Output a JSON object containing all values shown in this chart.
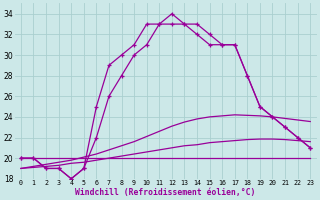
{
  "xlabel": "Windchill (Refroidissement éolien,°C)",
  "hours": [
    0,
    1,
    2,
    3,
    4,
    5,
    6,
    7,
    8,
    9,
    10,
    11,
    12,
    13,
    14,
    15,
    16,
    17,
    18,
    19,
    20,
    21,
    22,
    23
  ],
  "windchill": [
    20,
    20,
    19,
    19,
    18,
    19,
    25,
    29,
    30,
    31,
    33,
    33,
    34,
    33,
    32,
    31,
    31,
    31,
    28,
    25,
    24,
    23,
    22,
    21
  ],
  "temp": [
    20,
    20,
    19,
    19,
    18,
    19,
    22,
    26,
    28,
    30,
    31,
    33,
    33,
    33,
    33,
    32,
    31,
    31,
    28,
    25,
    24,
    23,
    22,
    21
  ],
  "flat_line": [
    20,
    20,
    20,
    20,
    20,
    20,
    20,
    20,
    20,
    20,
    20,
    20,
    20,
    20,
    20,
    20,
    20,
    20,
    20,
    20,
    20,
    20,
    20,
    20
  ],
  "diag1": [
    19,
    19.1,
    19.2,
    19.3,
    19.5,
    19.6,
    19.8,
    20.0,
    20.2,
    20.4,
    20.6,
    20.8,
    21.0,
    21.2,
    21.3,
    21.5,
    21.6,
    21.7,
    21.8,
    21.85,
    21.85,
    21.8,
    21.7,
    21.6
  ],
  "diag2": [
    19,
    19.2,
    19.4,
    19.6,
    19.8,
    20.1,
    20.4,
    20.8,
    21.2,
    21.6,
    22.1,
    22.6,
    23.1,
    23.5,
    23.8,
    24.0,
    24.1,
    24.2,
    24.15,
    24.1,
    24.0,
    23.85,
    23.7,
    23.55
  ],
  "line_color": "#990099",
  "bg_color": "#cce8e8",
  "grid_color": "#aacfcf",
  "ylim": [
    18,
    35
  ],
  "yticks": [
    18,
    20,
    22,
    24,
    26,
    28,
    30,
    32,
    34
  ],
  "xlim": [
    -0.5,
    23.5
  ]
}
